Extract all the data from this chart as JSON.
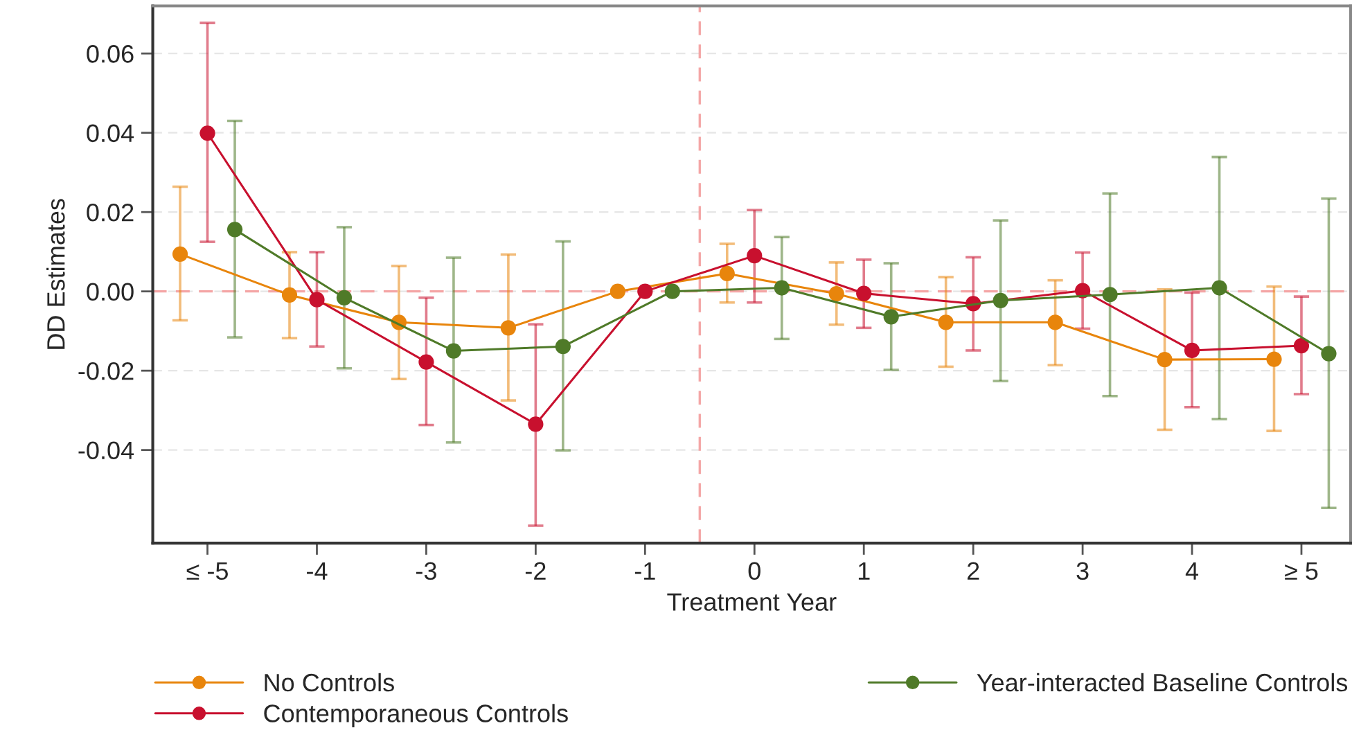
{
  "chart_data": {
    "type": "line",
    "xlabel": "Treatment Year",
    "ylabel": "DD Estimates",
    "xlim": [
      -5.5,
      5.45
    ],
    "ylim": [
      -0.0635,
      0.072
    ],
    "xticks": [
      {
        "value": -5,
        "label": "≤ -5"
      },
      -4,
      -3,
      -2,
      -1,
      0,
      1,
      2,
      3,
      4,
      {
        "value": 5,
        "label": "≥ 5"
      }
    ],
    "yticks": [
      {
        "value": -0.04,
        "label": "-0.04"
      },
      {
        "value": -0.02,
        "label": "-0.02"
      },
      {
        "value": 0,
        "label": "0.00"
      },
      {
        "value": 0.02,
        "label": "0.02"
      },
      {
        "value": 0.04,
        "label": "0.04"
      },
      {
        "value": 0.06,
        "label": "0.06"
      }
    ],
    "grid": "y",
    "marker": "circle",
    "line_style": "solid",
    "legend": "bottom",
    "ref_lines": [
      {
        "axis": "y",
        "value": 0,
        "color": "#f4a6a6",
        "line_style": "dashed"
      },
      {
        "axis": "x",
        "value": -0.5,
        "color": "#f4a6a6",
        "line_style": "dashed"
      }
    ],
    "series": [
      {
        "name": "No Controls",
        "color": "#e8850c",
        "x": [
          -5.25,
          -4.25,
          -3.25,
          -2.25,
          -1.25,
          -0.25,
          0.75,
          1.75,
          2.75,
          3.75,
          4.75
        ],
        "values": [
          0.0094,
          -0.0009,
          -0.0078,
          -0.0092,
          0.0,
          0.0045,
          -0.0006,
          -0.0078,
          -0.0078,
          -0.0172,
          -0.0171
        ],
        "errors": [
          [
            -0.0073,
            0.0264
          ],
          [
            -0.0118,
            0.0099
          ],
          [
            -0.0221,
            0.0064
          ],
          [
            -0.0275,
            0.0093
          ],
          null,
          [
            -0.0028,
            0.012
          ],
          [
            -0.0084,
            0.0073
          ],
          [
            -0.019,
            0.0036
          ],
          [
            -0.0186,
            0.0028
          ],
          [
            -0.0349,
            0.0005
          ],
          [
            -0.0352,
            0.0012
          ]
        ]
      },
      {
        "name": "Contemporaneous Controls",
        "color": "#c8102e",
        "x": [
          -5,
          -4,
          -3,
          -2,
          -1,
          0,
          1,
          2,
          3,
          4,
          5
        ],
        "values": [
          0.0399,
          -0.0021,
          -0.0178,
          -0.0335,
          0.0,
          0.009,
          -0.0005,
          -0.0031,
          0.0002,
          -0.0149,
          -0.0137
        ],
        "errors": [
          [
            0.0125,
            0.0677
          ],
          [
            -0.0139,
            0.0099
          ],
          [
            -0.0337,
            -0.0016
          ],
          [
            -0.0591,
            -0.0083
          ],
          null,
          [
            -0.0028,
            0.0205
          ],
          [
            -0.0092,
            0.008
          ],
          [
            -0.0149,
            0.0086
          ],
          [
            -0.0094,
            0.0098
          ],
          [
            -0.0292,
            -0.0003
          ],
          [
            -0.0259,
            -0.0013
          ]
        ]
      },
      {
        "name": "Year-interacted Baseline Controls",
        "color": "#4f7a28",
        "x": [
          -4.75,
          -3.75,
          -2.75,
          -1.75,
          -0.75,
          0.25,
          1.25,
          2.25,
          3.25,
          4.25,
          5.25
        ],
        "values": [
          0.0156,
          -0.0016,
          -0.015,
          -0.0139,
          0.0,
          0.0009,
          -0.0064,
          -0.0023,
          -0.0008,
          0.0009,
          -0.0157
        ],
        "errors": [
          [
            -0.0116,
            0.043
          ],
          [
            -0.0194,
            0.0162
          ],
          [
            -0.0381,
            0.0085
          ],
          [
            -0.0401,
            0.0126
          ],
          null,
          [
            -0.012,
            0.0137
          ],
          [
            -0.0198,
            0.0071
          ],
          [
            -0.0226,
            0.0179
          ],
          [
            -0.0264,
            0.0247
          ],
          [
            -0.0322,
            0.0339
          ],
          [
            -0.0546,
            0.0234
          ]
        ]
      }
    ]
  }
}
